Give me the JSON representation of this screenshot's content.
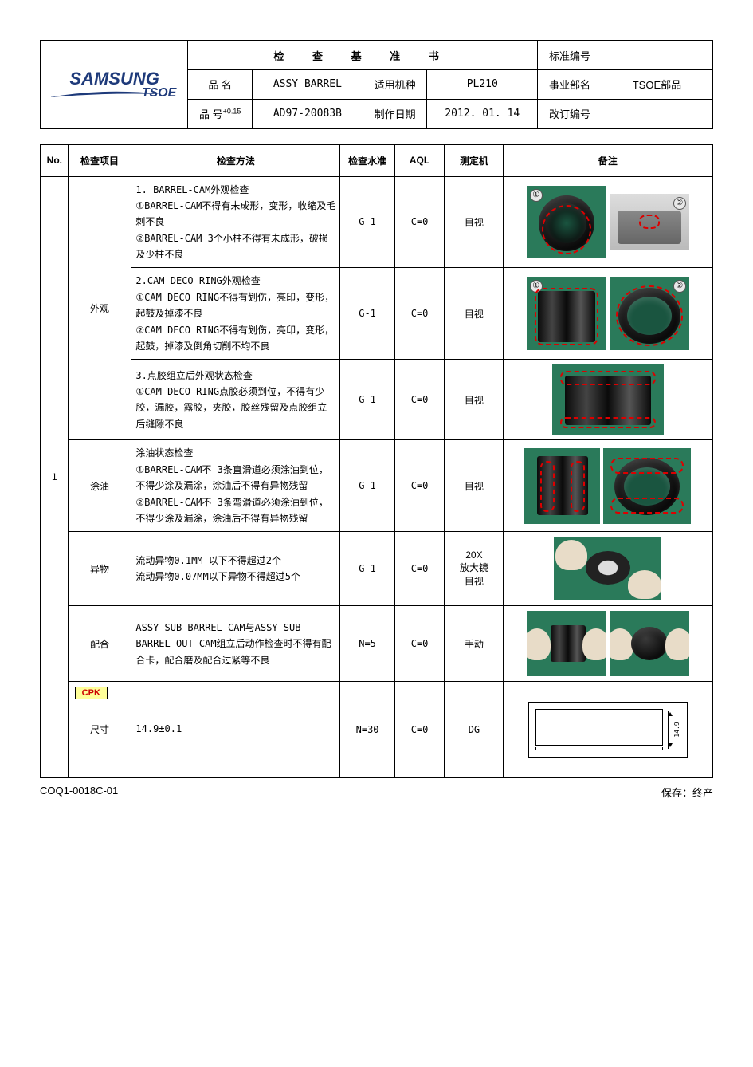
{
  "header": {
    "title": "检 查 基 准 书",
    "logo_main": "SAMSUNG",
    "logo_sub": "TSOE",
    "std_num_label": "标准编号",
    "std_num": "",
    "name_label": "品 名",
    "name": "ASSY BARREL",
    "model_label": "适用机种",
    "model": "PL210",
    "dept_label": "事业部名",
    "dept": "TSOE部品",
    "partno_label": "品 号",
    "partno_sup": "+0.15",
    "partno": "AD97-20083B",
    "date_label": "制作日期",
    "date": "2012. 01. 14",
    "rev_label": "改订编号",
    "rev": ""
  },
  "columns": {
    "no": "No.",
    "item": "检查项目",
    "method": "检查方法",
    "level": "检查水准",
    "aql": "AQL",
    "machine": "测定机",
    "remark": "备注"
  },
  "rows": [
    {
      "no": "1",
      "item": "外观",
      "method": "1. BARREL-CAM外观检查\n①BARREL-CAM不得有未成形，变形，收缩及毛刺不良\n②BARREL-CAM 3个小柱不得有未成形，破损及少柱不良",
      "level": "G-1",
      "aql": "C=0",
      "machine": "目视",
      "img": "r1"
    },
    {
      "item": "",
      "method": "2.CAM DECO RING外观检查\n①CAM DECO RING不得有划伤，亮印，变形，起鼓及掉漆不良\n②CAM DECO RING不得有划伤，亮印，变形，起鼓，掉漆及倒角切削不均不良",
      "level": "G-1",
      "aql": "C=0",
      "machine": "目视",
      "img": "r2"
    },
    {
      "item": "",
      "method": "3.点胶组立后外观状态检查\n①CAM DECO RING点胶必须到位，不得有少胶，漏胶，露胶，夹胶，胶丝残留及点胶组立后缝隙不良",
      "level": "G-1",
      "aql": "C=0",
      "machine": "目视",
      "img": "r3"
    },
    {
      "item": "涂油",
      "method": "涂油状态检查\n①BARREL-CAM不 3条直滑道必须涂油到位，不得少涂及漏涂，涂油后不得有异物残留\n②BARREL-CAM不 3条弯滑道必须涂油到位，不得少涂及漏涂，涂油后不得有异物残留",
      "level": "G-1",
      "aql": "C=0",
      "machine": "目视",
      "img": "r4"
    },
    {
      "item": "异物",
      "method": "流动异物0.1MM 以下不得超过2个\n流动异物0.07MM以下异物不得超过5个",
      "level": "G-1",
      "aql": "C=0",
      "machine": "20X\n放大镜\n目视",
      "img": "r5"
    },
    {
      "item": "配合",
      "method": "ASSY SUB BARREL-CAM与ASSY SUB BARREL-OUT CAM组立后动作检查时不得有配合卡，配合磨及配合过紧等不良",
      "level": "N=5",
      "aql": "C=0",
      "machine": "手动",
      "img": "r6"
    },
    {
      "item": "尺寸",
      "method": "14.9±0.1",
      "level": "N=30",
      "aql": "C=0",
      "machine": "DG",
      "img": "r7",
      "cpk": "CPK"
    }
  ],
  "footer": {
    "left": "COQ1-0018C-01",
    "right": "保存：终产"
  },
  "colors": {
    "border": "#000000",
    "logo": "#1e3a7a",
    "photo_bg": "#2a7a5a",
    "anno": "#d00000",
    "cpk_bg": "#ffff99",
    "cpk_text": "#cc0000"
  }
}
